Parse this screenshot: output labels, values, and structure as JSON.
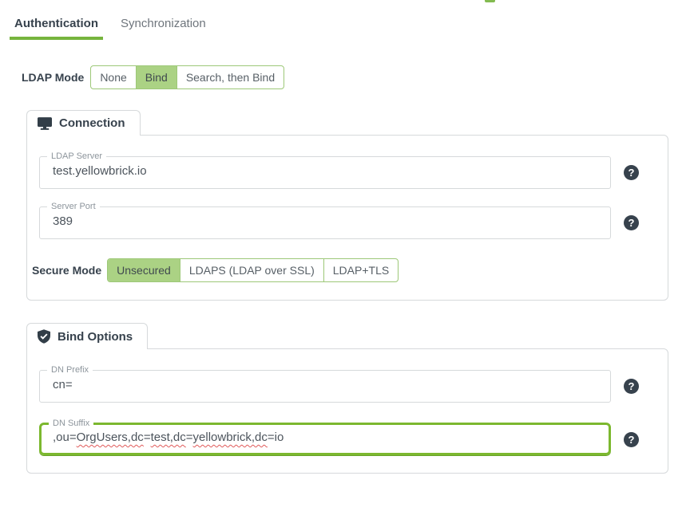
{
  "tab_bar": {
    "tabs": [
      {
        "label": "Authentication",
        "active": true
      },
      {
        "label": "Synchronization",
        "active": false
      }
    ]
  },
  "ldap_mode": {
    "label": "LDAP Mode",
    "options": [
      {
        "label": "None",
        "selected": false
      },
      {
        "label": "Bind",
        "selected": true
      },
      {
        "label": "Search, then Bind",
        "selected": false
      }
    ]
  },
  "connection": {
    "title": "Connection",
    "icon": "monitor-icon",
    "ldap_server": {
      "label": "LDAP Server",
      "value": "test.yellowbrick.io"
    },
    "server_port": {
      "label": "Server Port",
      "value": "389"
    },
    "secure_mode": {
      "label": "Secure Mode",
      "options": [
        {
          "label": "Unsecured",
          "selected": true
        },
        {
          "label": "LDAPS (LDAP over SSL)",
          "selected": false
        },
        {
          "label": "LDAP+TLS",
          "selected": false
        }
      ]
    }
  },
  "bind_options": {
    "title": "Bind Options",
    "icon": "shield-check-icon",
    "dn_prefix": {
      "label": "DN Prefix",
      "value": "cn="
    },
    "dn_suffix": {
      "label": "DN Suffix",
      "value": ",ou=OrgUsers,dc=test,dc=yellowbrick,dc=io",
      "focused": true,
      "segments": [
        {
          "text": ",ou=",
          "misspelled": false
        },
        {
          "text": "OrgUsers,dc",
          "misspelled": true
        },
        {
          "text": "=",
          "misspelled": false
        },
        {
          "text": "test,dc",
          "misspelled": true
        },
        {
          "text": "=",
          "misspelled": false
        },
        {
          "text": "yellowbrick,dc",
          "misspelled": true
        },
        {
          "text": "=io",
          "misspelled": false
        }
      ]
    }
  },
  "help": {
    "glyph": "?"
  },
  "colors": {
    "accent_green": "#76b43d",
    "focus_green": "#7cb82f",
    "segment_border": "#9dc878",
    "segment_selected_bg": "#abd284",
    "dark": "#37424d",
    "border_gray": "#d6d9db",
    "label_gray": "#8d959c",
    "text_gray": "#4c545c",
    "muted_gray": "#6e757c",
    "squiggle_red": "#e05a5a"
  }
}
